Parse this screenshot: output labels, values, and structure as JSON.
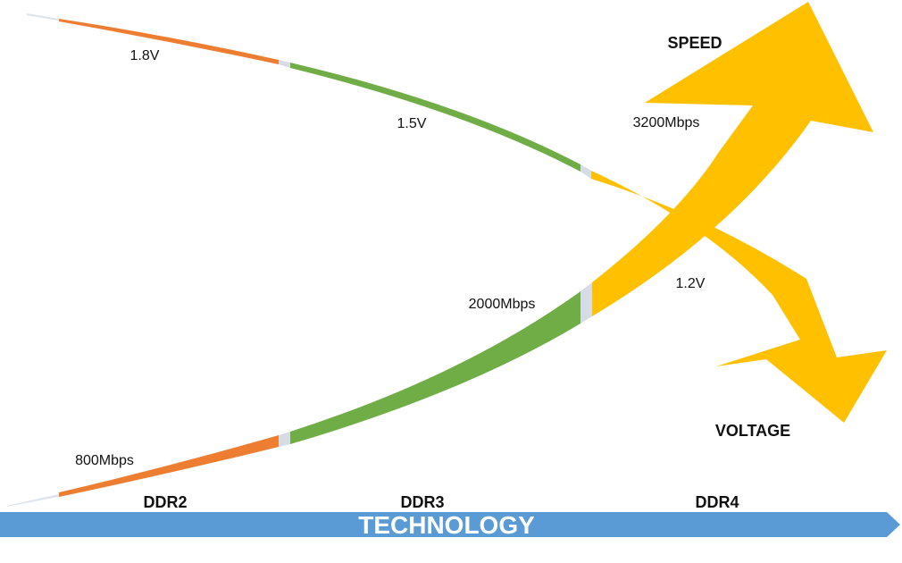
{
  "diagram": {
    "speed_title": "SPEED",
    "voltage_title": "VOLTAGE",
    "axis_label": "TECHNOLOGY",
    "generations": [
      "DDR2",
      "DDR3",
      "DDR4"
    ],
    "voltage_labels": [
      "1.8V",
      "1.5V",
      "1.2V"
    ],
    "speed_labels": [
      "800Mbps",
      "2000Mbps",
      "3200Mbps"
    ],
    "colors": {
      "ddr2": "#ED7D31",
      "ddr3": "#70AD47",
      "ddr4": "#FFC000",
      "axis": "#5B9BD5",
      "gap": "#D6DCE5",
      "fade": "#DDE3EE"
    }
  }
}
